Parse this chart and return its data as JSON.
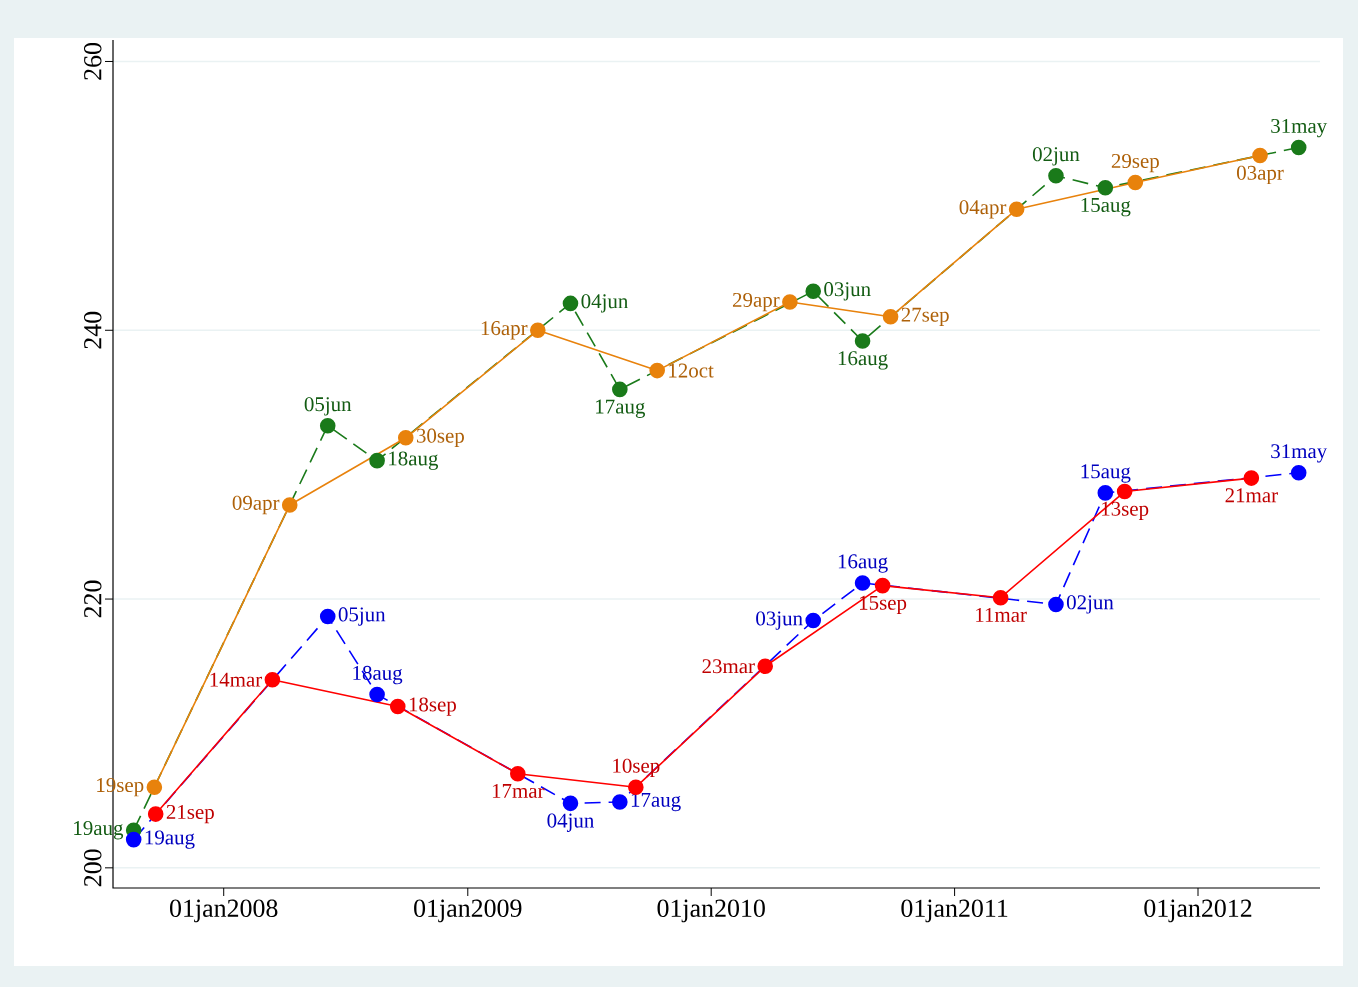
{
  "chart_data": {
    "type": "line",
    "x": [
      "2007-08-19",
      "2008-06-05",
      "2008-08-18",
      "2009-06-04",
      "2009-08-17",
      "2010-06-03",
      "2010-08-16",
      "2011-06-02",
      "2011-08-15",
      "2012-05-31"
    ],
    "series": [
      {
        "color": "#1a7a1a",
        "line_style": "dashed",
        "values": [
          202.8,
          232.9,
          230.3,
          242.0,
          235.6,
          242.9,
          239.2,
          251.5,
          250.6,
          253.6
        ],
        "value_labels": [
          "19aug",
          "05jun",
          "18aug",
          "04jun",
          "17aug",
          "03jun",
          "16aug",
          "02jun",
          "15aug",
          "31may"
        ]
      },
      {
        "color": "#e8820c",
        "line_style": "solid",
        "x": [
          "2007-09-19",
          "2008-04-09",
          "2008-09-30",
          "2009-04-16",
          "2009-10-12",
          "2010-04-29",
          "2010-09-27",
          "2011-04-04",
          "2011-09-29",
          "2012-04-03"
        ],
        "values": [
          206.0,
          227.0,
          232.0,
          240.0,
          237.0,
          242.1,
          241.0,
          249.0,
          251.0,
          253.0
        ],
        "value_labels": [
          "19sep",
          "09apr",
          "30sep",
          "16apr",
          "12oct",
          "29apr",
          "27sep",
          "04apr",
          "29sep",
          "03apr"
        ]
      },
      {
        "color": "#0000ff",
        "line_style": "dashed",
        "values": [
          202.1,
          218.7,
          212.9,
          204.8,
          204.9,
          218.4,
          221.2,
          219.6,
          227.9,
          229.4
        ],
        "value_labels": [
          "19aug",
          "05jun",
          "18aug",
          "04jun",
          "17aug",
          "03jun",
          "16aug",
          "02jun",
          "15aug",
          "31may"
        ]
      },
      {
        "color": "#ff0000",
        "line_style": "solid",
        "x": [
          "2007-09-21",
          "2008-03-14",
          "2008-09-18",
          "2009-03-17",
          "2009-09-10",
          "2010-03-23",
          "2010-09-15",
          "2011-03-11",
          "2011-09-13",
          "2012-03-21"
        ],
        "values": [
          204.0,
          214.0,
          212.0,
          207.0,
          206.0,
          215.0,
          221.0,
          220.1,
          228.0,
          229.0
        ],
        "value_labels": [
          "21sep",
          "14mar",
          "18sep",
          "17mar",
          "10sep",
          "23mar",
          "15sep",
          "11mar",
          "13sep",
          "21mar"
        ]
      }
    ],
    "xlim": [
      "2007-07-19",
      "2012-07-02"
    ],
    "xticks": [
      {
        "value": "2008-01-01",
        "label": "01jan2008"
      },
      {
        "value": "2009-01-01",
        "label": "01jan2009"
      },
      {
        "value": "2010-01-01",
        "label": "01jan2010"
      },
      {
        "value": "2011-01-01",
        "label": "01jan2011"
      },
      {
        "value": "2012-01-01",
        "label": "01jan2012"
      }
    ],
    "ylim": [
      198.5,
      261.6
    ],
    "yticks": [
      200,
      220,
      240,
      260
    ],
    "grid": "y",
    "legend": false,
    "marker": "circle"
  }
}
